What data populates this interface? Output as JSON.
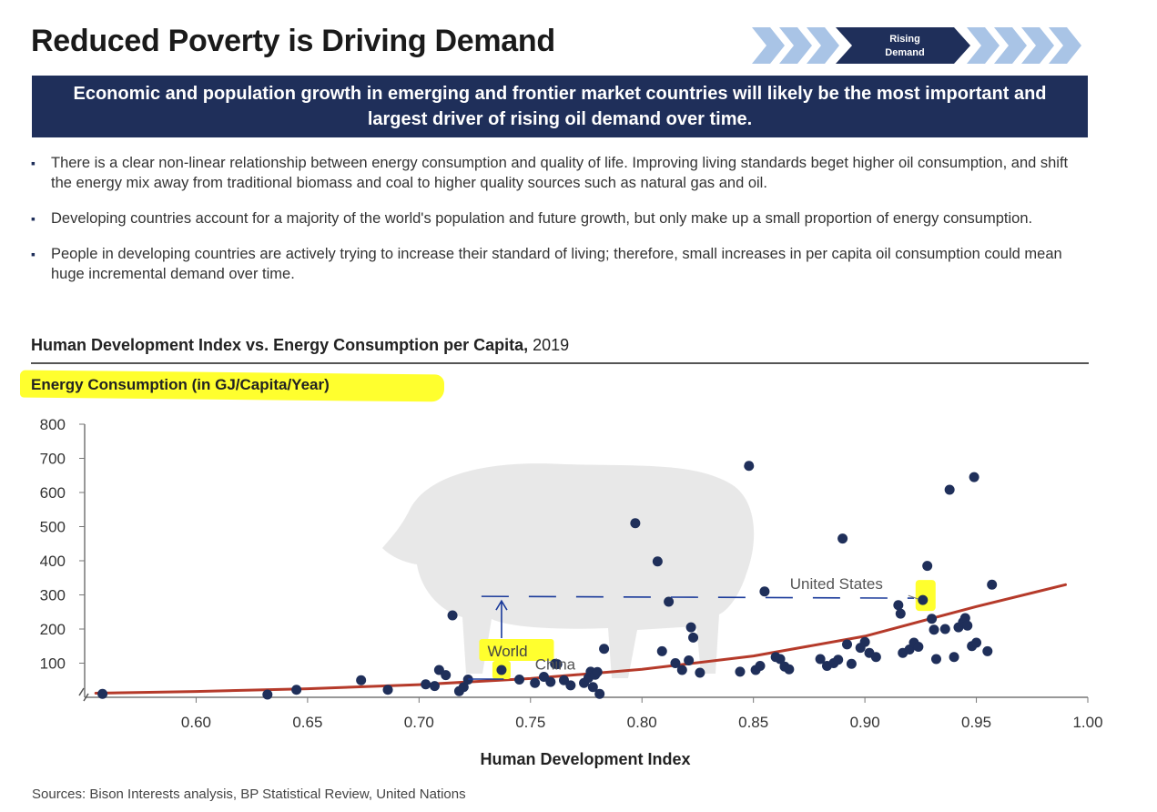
{
  "header": {
    "title": "Reduced Poverty is Driving Demand",
    "process_step": [
      "Rising",
      "Demand"
    ]
  },
  "banner": {
    "text": "Economic and population growth in emerging and frontier market countries will likely be the most important and largest driver of rising oil demand over time."
  },
  "bullets": [
    "There is a clear non-linear relationship between energy consumption and quality of life. Improving living standards beget higher oil consumption, and shift the energy mix away from traditional biomass and coal to higher quality sources such as natural gas and oil.",
    "Developing countries account for a majority of the world's population and future growth, but only make up a small proportion of energy consumption.",
    "People in developing countries are actively trying to increase their standard of living; therefore, small increases in per capita oil consumption could mean huge incremental demand over time."
  ],
  "chart_heading": {
    "bold": "Human Development Index vs. Energy Consumption per Capita,",
    "year": " 2019"
  },
  "sources": "Sources: Bison Interests analysis, BP Statistical Review, United Nations",
  "colors": {
    "navy": "#1f2f5a",
    "trend": "#b53a2a",
    "highlight": "#ffff2e",
    "chevron_light": "#a9c4e6",
    "annotation_pen": "#1a3a9a"
  },
  "chart_data": {
    "type": "scatter",
    "title": "",
    "xlabel": "Human Development Index",
    "ylabel": "Energy Consumption (in GJ/Capita/Year)",
    "xlim": [
      0.55,
      1.0
    ],
    "ylim": [
      0,
      800
    ],
    "xticks": [
      "0.60",
      "0.65",
      "0.70",
      "0.75",
      "0.80",
      "0.85",
      "0.90",
      "0.95",
      "1.00"
    ],
    "yticks": [
      "100",
      "200",
      "300",
      "400",
      "500",
      "600",
      "700",
      "800"
    ],
    "grid": false,
    "points": [
      {
        "x": 0.558,
        "y": 10
      },
      {
        "x": 0.632,
        "y": 8
      },
      {
        "x": 0.645,
        "y": 22
      },
      {
        "x": 0.674,
        "y": 50
      },
      {
        "x": 0.686,
        "y": 22
      },
      {
        "x": 0.703,
        "y": 38
      },
      {
        "x": 0.707,
        "y": 33
      },
      {
        "x": 0.709,
        "y": 80
      },
      {
        "x": 0.712,
        "y": 65
      },
      {
        "x": 0.715,
        "y": 240
      },
      {
        "x": 0.718,
        "y": 18
      },
      {
        "x": 0.72,
        "y": 30
      },
      {
        "x": 0.722,
        "y": 52
      },
      {
        "x": 0.745,
        "y": 52
      },
      {
        "x": 0.752,
        "y": 42
      },
      {
        "x": 0.756,
        "y": 60
      },
      {
        "x": 0.759,
        "y": 45
      },
      {
        "x": 0.762,
        "y": 97
      },
      {
        "x": 0.765,
        "y": 50
      },
      {
        "x": 0.768,
        "y": 35
      },
      {
        "x": 0.774,
        "y": 42
      },
      {
        "x": 0.776,
        "y": 57
      },
      {
        "x": 0.777,
        "y": 75
      },
      {
        "x": 0.778,
        "y": 30
      },
      {
        "x": 0.779,
        "y": 66
      },
      {
        "x": 0.78,
        "y": 74
      },
      {
        "x": 0.781,
        "y": 10
      },
      {
        "x": 0.783,
        "y": 142
      },
      {
        "x": 0.797,
        "y": 510
      },
      {
        "x": 0.807,
        "y": 398
      },
      {
        "x": 0.809,
        "y": 135
      },
      {
        "x": 0.812,
        "y": 280
      },
      {
        "x": 0.815,
        "y": 100
      },
      {
        "x": 0.818,
        "y": 80
      },
      {
        "x": 0.821,
        "y": 108
      },
      {
        "x": 0.822,
        "y": 205
      },
      {
        "x": 0.823,
        "y": 175
      },
      {
        "x": 0.826,
        "y": 72
      },
      {
        "x": 0.844,
        "y": 75
      },
      {
        "x": 0.848,
        "y": 678
      },
      {
        "x": 0.851,
        "y": 80
      },
      {
        "x": 0.853,
        "y": 92
      },
      {
        "x": 0.855,
        "y": 310
      },
      {
        "x": 0.86,
        "y": 118
      },
      {
        "x": 0.862,
        "y": 112
      },
      {
        "x": 0.864,
        "y": 90
      },
      {
        "x": 0.866,
        "y": 82
      },
      {
        "x": 0.88,
        "y": 112
      },
      {
        "x": 0.883,
        "y": 92
      },
      {
        "x": 0.886,
        "y": 100
      },
      {
        "x": 0.888,
        "y": 110
      },
      {
        "x": 0.89,
        "y": 465
      },
      {
        "x": 0.892,
        "y": 155
      },
      {
        "x": 0.894,
        "y": 98
      },
      {
        "x": 0.898,
        "y": 145
      },
      {
        "x": 0.9,
        "y": 162
      },
      {
        "x": 0.902,
        "y": 130
      },
      {
        "x": 0.905,
        "y": 118
      },
      {
        "x": 0.915,
        "y": 270
      },
      {
        "x": 0.916,
        "y": 245
      },
      {
        "x": 0.917,
        "y": 130
      },
      {
        "x": 0.92,
        "y": 140
      },
      {
        "x": 0.922,
        "y": 160
      },
      {
        "x": 0.924,
        "y": 148
      },
      {
        "x": 0.928,
        "y": 385
      },
      {
        "x": 0.93,
        "y": 230
      },
      {
        "x": 0.931,
        "y": 198
      },
      {
        "x": 0.932,
        "y": 112
      },
      {
        "x": 0.936,
        "y": 200
      },
      {
        "x": 0.938,
        "y": 608
      },
      {
        "x": 0.94,
        "y": 118
      },
      {
        "x": 0.942,
        "y": 205
      },
      {
        "x": 0.944,
        "y": 220
      },
      {
        "x": 0.945,
        "y": 232
      },
      {
        "x": 0.946,
        "y": 210
      },
      {
        "x": 0.948,
        "y": 150
      },
      {
        "x": 0.949,
        "y": 645
      },
      {
        "x": 0.95,
        "y": 160
      },
      {
        "x": 0.955,
        "y": 135
      },
      {
        "x": 0.957,
        "y": 330
      }
    ],
    "labeled_points": [
      {
        "label": "World",
        "x": 0.737,
        "y": 80
      },
      {
        "label": "China",
        "x": 0.761,
        "y": 98
      },
      {
        "label": "United States",
        "x": 0.926,
        "y": 285
      }
    ],
    "trendline": {
      "x": [
        0.555,
        0.6,
        0.65,
        0.7,
        0.75,
        0.8,
        0.85,
        0.9,
        0.95,
        0.99
      ],
      "y": [
        12,
        17,
        25,
        37,
        55,
        82,
        121,
        179,
        266,
        330
      ]
    }
  }
}
